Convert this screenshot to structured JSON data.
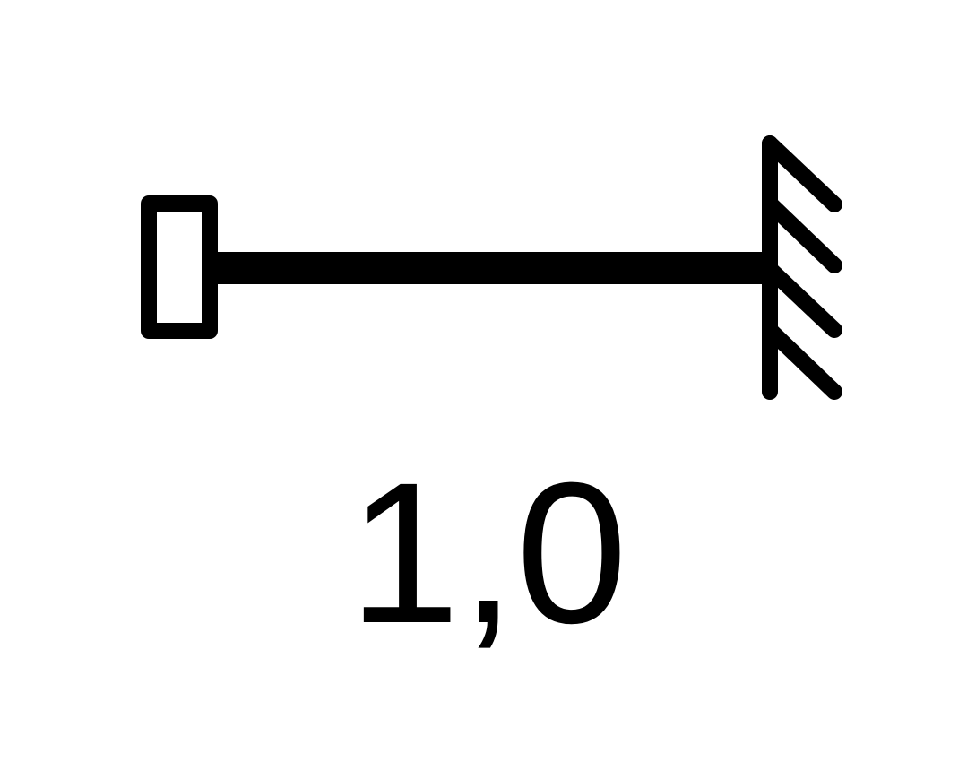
{
  "diagram": {
    "symbol": "beam-with-sliding-end-and-fixed-support",
    "label": "1,0",
    "colors": {
      "stroke": "#000000",
      "background": "#ffffff"
    }
  }
}
